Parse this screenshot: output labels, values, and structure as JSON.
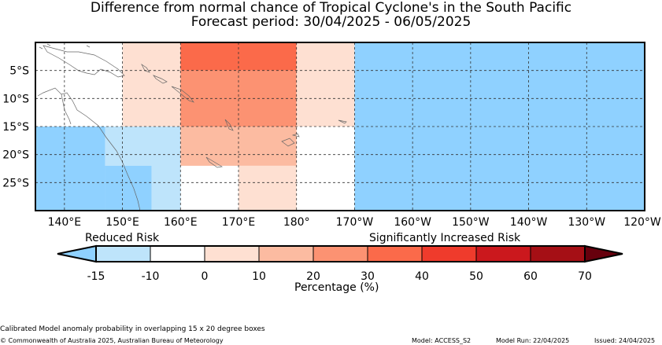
{
  "title": "Difference from normal chance of Tropical Cyclone's in the South Pacific",
  "subtitle": "Forecast period: 30/04/2025 - 06/05/2025",
  "lon_ticks": [
    "140°E",
    "150°E",
    "160°E",
    "170°E",
    "180°",
    "170°W",
    "160°W",
    "150°W",
    "140°W",
    "130°W",
    "120°W"
  ],
  "lat_ticks": [
    "5°S",
    "10°S",
    "15°S",
    "20°S",
    "25°S"
  ],
  "legend": {
    "reduced_label": "Reduced Risk",
    "increased_label": "Significantly Increased Risk",
    "tick_labels": [
      "-15",
      "-10",
      "0",
      "10",
      "20",
      "30",
      "40",
      "50",
      "60",
      "70"
    ],
    "unit_label": "Percentage (%)",
    "colors": [
      "#8fd1ff",
      "#bee4fb",
      "#ffffff",
      "#fee0d2",
      "#fcbba1",
      "#fc9272",
      "#fb6a4a",
      "#ef3b2c",
      "#cb181d",
      "#a50f15",
      "#67000d"
    ]
  },
  "footer": {
    "note": "Calibrated Model anomaly probability in overlapping 15 x 20 degree boxes",
    "copyright": "© Commonwealth of Australia 2025, Australian Bureau of Meteorology",
    "model": "Model: ACCESS_S2",
    "model_run": "Model Run: 22/04/2025",
    "issued": "Issued: 24/04/2025"
  },
  "grid_cells": [
    {
      "lon0": 135,
      "lon1": 147,
      "lat0": -15,
      "lat1": -30,
      "color": "#8fd1ff"
    },
    {
      "lon0": 147,
      "lon1": 160,
      "lat0": -15,
      "lat1": -22,
      "color": "#bee4fb"
    },
    {
      "lon0": 147,
      "lon1": 150,
      "lat0": -22,
      "lat1": -30,
      "color": "#8fd1ff"
    },
    {
      "lon0": 150,
      "lon1": 160,
      "lat0": -22,
      "lat1": -30,
      "color": "#8fd1ff"
    },
    {
      "lon0": 155,
      "lon1": 160,
      "lat0": -22,
      "lat1": -30,
      "color": "#bee4fb"
    },
    {
      "lon0": 150,
      "lon1": 160,
      "lat0": 0,
      "lat1": -15,
      "color": "#fee0d2"
    },
    {
      "lon0": 160,
      "lon1": 180,
      "lat0": 0,
      "lat1": -5,
      "color": "#fb6a4a"
    },
    {
      "lon0": 160,
      "lon1": 180,
      "lat0": -5,
      "lat1": -15,
      "color": "#fc9272"
    },
    {
      "lon0": 160,
      "lon1": 180,
      "lat0": -15,
      "lat1": -22,
      "color": "#fcbba1"
    },
    {
      "lon0": 170,
      "lon1": 180,
      "lat0": -22,
      "lat1": -30,
      "color": "#fee0d2"
    },
    {
      "lon0": 180,
      "lon1": 190,
      "lat0": 0,
      "lat1": -15,
      "color": "#fee0d2"
    },
    {
      "lon0": 190,
      "lon1": 240,
      "lat0": 0,
      "lat1": -30,
      "color": "#8fd1ff"
    }
  ]
}
